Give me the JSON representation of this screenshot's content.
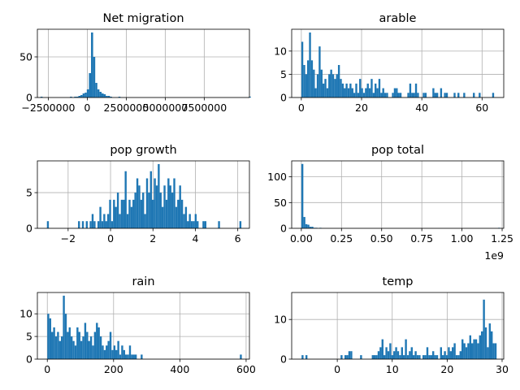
{
  "chart_data": [
    {
      "type": "bar",
      "title": "Net migration",
      "xlim": [
        -3200000,
        10400000
      ],
      "ylim": [
        0,
        84
      ],
      "grid": true,
      "xticks": [
        -2500000,
        0,
        2500000,
        5000000,
        7500000
      ],
      "xtick_labels": [
        "−2500000",
        "0",
        "2500000",
        "5000000",
        "7500000"
      ],
      "yticks": [
        0,
        50
      ],
      "ytick_labels": [
        "0",
        "50"
      ],
      "bin_start": -3000000,
      "bin_width": 135000,
      "counts": [
        1,
        0,
        0,
        0,
        0,
        0,
        0,
        0,
        0,
        0,
        0,
        0,
        0,
        0,
        1,
        0,
        1,
        1,
        2,
        3,
        5,
        6,
        10,
        30,
        80,
        50,
        18,
        10,
        7,
        5,
        4,
        2,
        2,
        1,
        0,
        0,
        0,
        1,
        0,
        0,
        0,
        0,
        0,
        0,
        0,
        0,
        0,
        0,
        0,
        0,
        0,
        0,
        0,
        0,
        0,
        0,
        0,
        0,
        0,
        0,
        0,
        0,
        0,
        0,
        0,
        0,
        0,
        0,
        0,
        0,
        0,
        0,
        0,
        0,
        0,
        0,
        0,
        0,
        0,
        0,
        0,
        0,
        0,
        0,
        0,
        0,
        0,
        0,
        0,
        0,
        0,
        0,
        0,
        0,
        0,
        0,
        0,
        0,
        0,
        1
      ]
    },
    {
      "type": "bar",
      "title": "arable",
      "xlim": [
        -3.2,
        67.2
      ],
      "ylim": [
        0,
        14.7
      ],
      "grid": true,
      "xticks": [
        0,
        20,
        40,
        60
      ],
      "xtick_labels": [
        "0",
        "20",
        "40",
        "60"
      ],
      "yticks": [
        0,
        5,
        10
      ],
      "ytick_labels": [
        "0",
        "5",
        "10"
      ],
      "bin_start": 0,
      "bin_width": 0.64,
      "counts": [
        12,
        7,
        5,
        8,
        14,
        8,
        6,
        2,
        5,
        11,
        6,
        3,
        4,
        2,
        5,
        6,
        5,
        4,
        5,
        7,
        4,
        3,
        2,
        3,
        2,
        3,
        2,
        1,
        3,
        1,
        4,
        2,
        1,
        2,
        3,
        2,
        4,
        1,
        3,
        2,
        4,
        1,
        2,
        1,
        1,
        0,
        0,
        1,
        2,
        2,
        1,
        1,
        0,
        0,
        0,
        1,
        3,
        1,
        1,
        3,
        1,
        0,
        0,
        1,
        1,
        0,
        0,
        0,
        2,
        1,
        1,
        0,
        2,
        0,
        1,
        1,
        0,
        0,
        0,
        1,
        0,
        1,
        0,
        0,
        1,
        0,
        0,
        0,
        0,
        1,
        0,
        0,
        1,
        0,
        0,
        0,
        0,
        0,
        0,
        1
      ]
    },
    {
      "type": "bar",
      "title": "pop growth",
      "xlim": [
        -3.45,
        6.55
      ],
      "ylim": [
        0,
        9.45
      ],
      "grid": true,
      "xticks": [
        -2,
        0,
        2,
        4,
        6
      ],
      "xtick_labels": [
        "−2",
        "0",
        "2",
        "4",
        "6"
      ],
      "yticks": [
        0,
        5
      ],
      "ytick_labels": [
        "0",
        "5"
      ],
      "bin_start": -3.0,
      "bin_width": 0.0917,
      "counts": [
        1,
        0,
        0,
        0,
        0,
        0,
        0,
        0,
        0,
        0,
        0,
        0,
        0,
        0,
        0,
        0,
        1,
        0,
        1,
        0,
        1,
        0,
        1,
        2,
        1,
        0,
        1,
        3,
        1,
        2,
        1,
        2,
        4,
        1,
        4,
        3,
        5,
        2,
        4,
        4,
        8,
        2,
        4,
        3,
        4,
        5,
        7,
        6,
        4,
        5,
        2,
        7,
        5,
        8,
        4,
        7,
        6,
        9,
        5,
        3,
        6,
        4,
        7,
        6,
        5,
        7,
        3,
        4,
        6,
        4,
        2,
        3,
        1,
        2,
        1,
        1,
        2,
        1,
        0,
        0,
        1,
        1,
        0,
        0,
        0,
        0,
        0,
        0,
        1,
        0,
        0,
        0,
        0,
        0,
        0,
        0,
        0,
        0,
        0,
        1
      ]
    },
    {
      "type": "bar",
      "title": "pop total",
      "xlim": [
        -60000000,
        1260000000
      ],
      "ylim": [
        0,
        131
      ],
      "grid": true,
      "xticks": [
        0,
        250000000,
        500000000,
        750000000,
        1000000000,
        1250000000
      ],
      "xtick_labels": [
        "0.00",
        "0.25",
        "0.50",
        "0.75",
        "1.00",
        "1.25"
      ],
      "offset_text": "1e9",
      "yticks": [
        0,
        50,
        100
      ],
      "ytick_labels": [
        "0",
        "50",
        "100"
      ],
      "bin_start": 0,
      "bin_width": 12500000,
      "counts": [
        125,
        22,
        8,
        7,
        3,
        3,
        1,
        1,
        0,
        1,
        0,
        0,
        0,
        0,
        0,
        0,
        0,
        0,
        0,
        0,
        0,
        0,
        0,
        0,
        0,
        0,
        0,
        0,
        0,
        0,
        0,
        0,
        0,
        0,
        0,
        0,
        0,
        0,
        0,
        0,
        0,
        0,
        0,
        0,
        0,
        0,
        0,
        0,
        0,
        0,
        0,
        0,
        0,
        0,
        0,
        0,
        0,
        0,
        0,
        0,
        0,
        0,
        0,
        0,
        0,
        0,
        0,
        0,
        0,
        0,
        0,
        0,
        0,
        0,
        0,
        0,
        0,
        0,
        0,
        0,
        0,
        0,
        0,
        0,
        0,
        0,
        0,
        0,
        0,
        0,
        0,
        0,
        0,
        0,
        0,
        0,
        0,
        0,
        1
      ]
    },
    {
      "type": "bar",
      "title": "rain",
      "xlim": [
        -30,
        610
      ],
      "ylim": [
        0,
        14.7
      ],
      "grid": true,
      "xticks": [
        0,
        200,
        400,
        600
      ],
      "xtick_labels": [
        "0",
        "200",
        "400",
        "600"
      ],
      "yticks": [
        0,
        5,
        10
      ],
      "ytick_labels": [
        "0",
        "5",
        "10"
      ],
      "bin_start": 0,
      "bin_width": 5.87,
      "counts": [
        10,
        9,
        6,
        7,
        5,
        6,
        4,
        5,
        14,
        10,
        6,
        7,
        5,
        4,
        3,
        7,
        6,
        4,
        5,
        8,
        6,
        4,
        5,
        3,
        6,
        8,
        7,
        5,
        3,
        2,
        3,
        4,
        6,
        2,
        3,
        2,
        4,
        1,
        3,
        2,
        1,
        1,
        3,
        1,
        1,
        1,
        0,
        0,
        1,
        0,
        0,
        0,
        0,
        0,
        0,
        0,
        0,
        0,
        0,
        0,
        0,
        0,
        0,
        0,
        0,
        0,
        0,
        0,
        0,
        0,
        0,
        0,
        0,
        0,
        0,
        0,
        0,
        0,
        0,
        0,
        0,
        0,
        0,
        0,
        0,
        0,
        0,
        0,
        0,
        0,
        0,
        0,
        0,
        0,
        0,
        0,
        0,
        0,
        0,
        1
      ]
    },
    {
      "type": "bar",
      "title": "temp",
      "xlim": [
        -8.3,
        30.3
      ],
      "ylim": [
        0,
        16.8
      ],
      "grid": true,
      "xticks": [
        0,
        10,
        20,
        30
      ],
      "xtick_labels": [
        "0",
        "10",
        "20",
        "30"
      ],
      "yticks": [
        0,
        10
      ],
      "ytick_labels": [
        "0",
        "10"
      ],
      "bin_start": -6.5,
      "bin_width": 0.355,
      "counts": [
        1,
        0,
        1,
        0,
        0,
        0,
        0,
        0,
        0,
        0,
        0,
        0,
        0,
        0,
        0,
        0,
        0,
        0,
        0,
        0,
        1,
        0,
        1,
        1,
        2,
        2,
        0,
        0,
        0,
        0,
        1,
        0,
        0,
        0,
        0,
        0,
        1,
        1,
        1,
        2,
        3,
        5,
        1,
        3,
        2,
        4,
        1,
        2,
        3,
        2,
        1,
        3,
        1,
        5,
        1,
        2,
        3,
        1,
        2,
        1,
        1,
        0,
        1,
        1,
        3,
        1,
        1,
        2,
        1,
        1,
        0,
        3,
        1,
        2,
        1,
        3,
        2,
        3,
        4,
        1,
        1,
        2,
        5,
        4,
        3,
        4,
        6,
        4,
        5,
        5,
        4,
        6,
        7,
        15,
        8,
        3,
        9,
        7,
        4,
        4
      ]
    }
  ]
}
